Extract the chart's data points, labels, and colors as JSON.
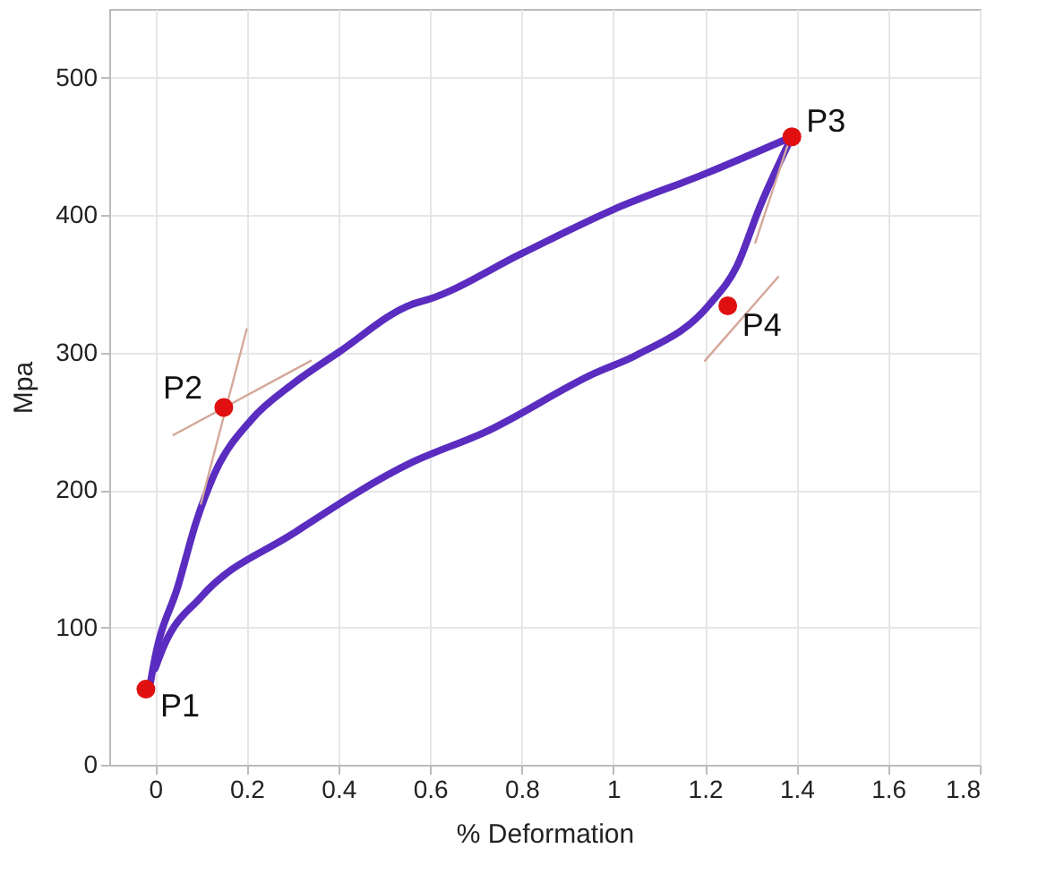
{
  "chart_data": {
    "type": "line",
    "xlabel": "% Deformation",
    "ylabel": "Mpa",
    "xlim": [
      -0.1,
      1.8
    ],
    "ylim": [
      0,
      550
    ],
    "xticks": [
      0,
      0.2,
      0.4,
      0.6,
      0.8,
      1,
      1.2,
      1.4,
      1.6,
      1.8
    ],
    "yticks": [
      0,
      100,
      200,
      300,
      400,
      500
    ],
    "grid": true,
    "series": [
      {
        "color": "#5a2cc0",
        "x": [
          -0.01,
          0.0,
          0.05,
          0.09,
          0.13,
          0.21,
          0.3,
          0.4,
          0.56,
          0.6,
          0.8,
          1.0,
          1.2,
          1.39
        ],
        "values": [
          60,
          78,
          130,
          177,
          212,
          251,
          277,
          300,
          335,
          339,
          372,
          404,
          430,
          457
        ]
      },
      {
        "color": "#5a2cc0",
        "x": [
          1.39,
          1.32,
          1.27,
          1.21,
          1.05,
          0.96,
          0.72,
          0.56,
          0.3,
          0.1,
          0.02,
          0.0
        ],
        "values": [
          457,
          406,
          363,
          335,
          298,
          285,
          242,
          220,
          168,
          122,
          87,
          70
        ]
      },
      {
        "color": "#d4a89a",
        "x": [
          0.04,
          0.34
        ],
        "values": [
          240,
          294
        ]
      },
      {
        "color": "#d4a89a",
        "x": [
          0.1,
          0.2
        ],
        "values": [
          190,
          317
        ]
      },
      {
        "color": "#d4a89a",
        "x": [
          1.2,
          1.36
        ],
        "values": [
          294,
          355
        ]
      },
      {
        "color": "#d4a89a",
        "x": [
          1.31,
          1.38
        ],
        "values": [
          380,
          450
        ]
      },
      {
        "type": "scatter",
        "color": "#e01010",
        "marker": "circle",
        "x": [
          -0.02,
          0.15,
          1.39,
          1.25
        ],
        "values": [
          55,
          260,
          457,
          334
        ]
      }
    ],
    "annotations": [
      {
        "text": "P1",
        "x": -0.02,
        "y": 55
      },
      {
        "text": "P2",
        "x": 0.15,
        "y": 260
      },
      {
        "text": "P3",
        "x": 1.39,
        "y": 457
      },
      {
        "text": "P4",
        "x": 1.25,
        "y": 334
      }
    ]
  }
}
